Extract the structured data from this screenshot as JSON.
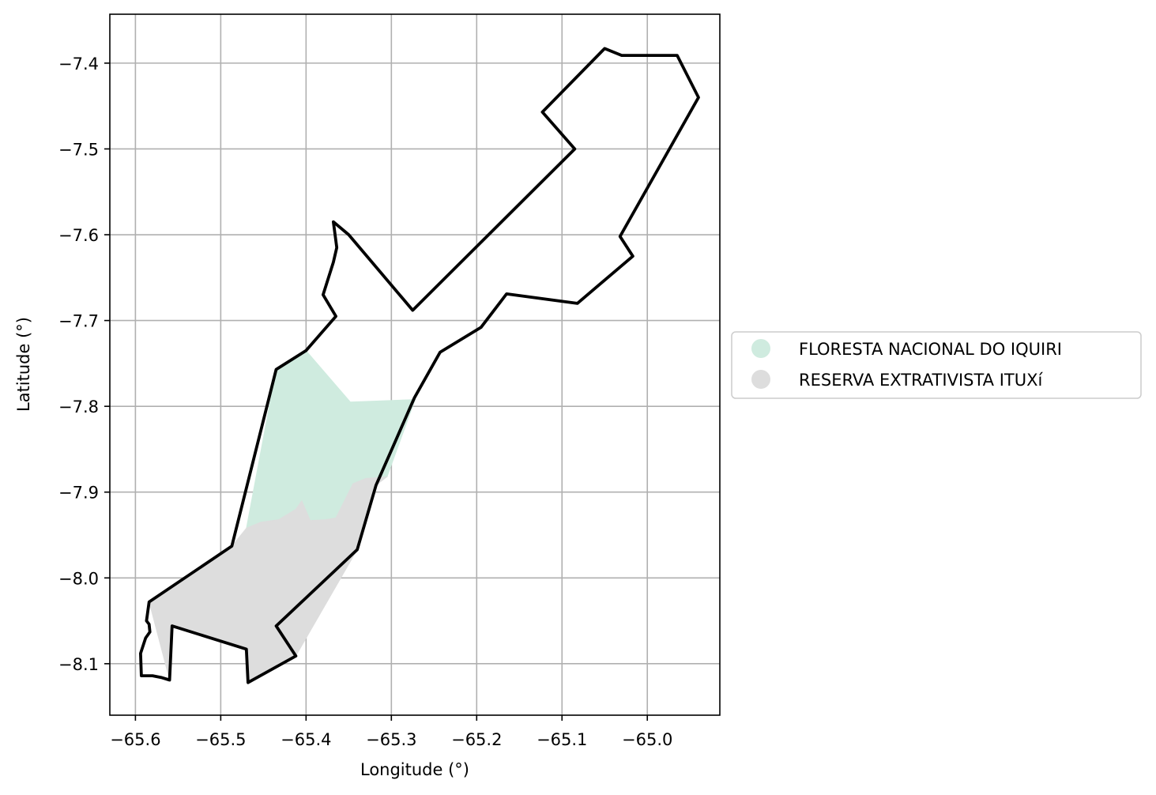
{
  "chart_data": {
    "type": "choropleth-map",
    "xlabel": "Longitude (°)",
    "ylabel": "Latitude (°)",
    "xlim": [
      -65.63,
      -64.915
    ],
    "ylim": [
      -8.16,
      -7.343
    ],
    "grid": true,
    "legend_placement": "center-right outside",
    "x_ticks": [
      {
        "value": -65.6,
        "label": "−65.6"
      },
      {
        "value": -65.5,
        "label": "−65.5"
      },
      {
        "value": -65.4,
        "label": "−65.4"
      },
      {
        "value": -65.3,
        "label": "−65.3"
      },
      {
        "value": -65.2,
        "label": "−65.2"
      },
      {
        "value": -65.1,
        "label": "−65.1"
      },
      {
        "value": -65.0,
        "label": "−65.0"
      }
    ],
    "y_ticks": [
      {
        "value": -7.4,
        "label": "−7.4"
      },
      {
        "value": -7.5,
        "label": "−7.5"
      },
      {
        "value": -7.6,
        "label": "−7.6"
      },
      {
        "value": -7.7,
        "label": "−7.7"
      },
      {
        "value": -7.8,
        "label": "−7.8"
      },
      {
        "value": -7.9,
        "label": "−7.9"
      },
      {
        "value": -8.0,
        "label": "−8.0"
      },
      {
        "value": -8.1,
        "label": "−8.1"
      }
    ],
    "legend": [
      {
        "label": "FLORESTA NACIONAL DO IQUIRI",
        "color": "#cfebdf"
      },
      {
        "label": "RESERVA EXTRATIVISTA ITUXí",
        "color": "#dddddd"
      }
    ],
    "areas": [
      {
        "name": "FLORESTA NACIONAL DO IQUIRI",
        "color": "#cfebdf",
        "polygon": [
          [
            -65.4,
            -7.735
          ],
          [
            -65.348,
            -7.795
          ],
          [
            -65.272,
            -7.792
          ],
          [
            -65.305,
            -7.882
          ],
          [
            -65.33,
            -7.884
          ],
          [
            -65.345,
            -7.89
          ],
          [
            -65.355,
            -7.91
          ],
          [
            -65.365,
            -7.93
          ],
          [
            -65.377,
            -7.932
          ],
          [
            -65.395,
            -7.933
          ],
          [
            -65.405,
            -7.91
          ],
          [
            -65.412,
            -7.92
          ],
          [
            -65.432,
            -7.932
          ],
          [
            -65.453,
            -7.935
          ],
          [
            -65.47,
            -7.942
          ],
          [
            -65.435,
            -7.757
          ]
        ]
      },
      {
        "name": "RESERVA EXTRATIVISTA ITUXí",
        "color": "#dddddd",
        "polygon": [
          [
            -65.47,
            -7.942
          ],
          [
            -65.453,
            -7.935
          ],
          [
            -65.432,
            -7.932
          ],
          [
            -65.412,
            -7.92
          ],
          [
            -65.405,
            -7.91
          ],
          [
            -65.395,
            -7.933
          ],
          [
            -65.377,
            -7.932
          ],
          [
            -65.365,
            -7.93
          ],
          [
            -65.355,
            -7.91
          ],
          [
            -65.345,
            -7.89
          ],
          [
            -65.33,
            -7.884
          ],
          [
            -65.305,
            -7.882
          ],
          [
            -65.318,
            -7.892
          ],
          [
            -65.34,
            -7.967
          ],
          [
            -65.412,
            -8.091
          ],
          [
            -65.468,
            -8.122
          ],
          [
            -65.47,
            -8.083
          ],
          [
            -65.557,
            -8.056
          ],
          [
            -65.56,
            -8.119
          ],
          [
            -65.584,
            -8.028
          ],
          [
            -65.487,
            -7.963
          ]
        ]
      }
    ],
    "outline": [
      [
        -65.05,
        -7.383
      ],
      [
        -65.03,
        -7.391
      ],
      [
        -64.965,
        -7.391
      ],
      [
        -64.94,
        -7.44
      ],
      [
        -65.032,
        -7.602
      ],
      [
        -65.017,
        -7.625
      ],
      [
        -65.082,
        -7.68
      ],
      [
        -65.165,
        -7.669
      ],
      [
        -65.195,
        -7.708
      ],
      [
        -65.243,
        -7.737
      ],
      [
        -65.273,
        -7.79
      ],
      [
        -65.295,
        -7.84
      ],
      [
        -65.318,
        -7.892
      ],
      [
        -65.34,
        -7.967
      ],
      [
        -65.435,
        -8.056
      ],
      [
        -65.412,
        -8.091
      ],
      [
        -65.468,
        -8.122
      ],
      [
        -65.47,
        -8.083
      ],
      [
        -65.557,
        -8.056
      ],
      [
        -65.56,
        -8.119
      ],
      [
        -65.57,
        -8.116
      ],
      [
        -65.58,
        -8.114
      ],
      [
        -65.593,
        -8.114
      ],
      [
        -65.594,
        -8.088
      ],
      [
        -65.588,
        -8.07
      ],
      [
        -65.583,
        -8.063
      ],
      [
        -65.584,
        -8.054
      ],
      [
        -65.587,
        -8.05
      ],
      [
        -65.584,
        -8.028
      ],
      [
        -65.487,
        -7.963
      ],
      [
        -65.435,
        -7.757
      ],
      [
        -65.4,
        -7.735
      ],
      [
        -65.365,
        -7.695
      ],
      [
        -65.38,
        -7.67
      ],
      [
        -65.368,
        -7.632
      ],
      [
        -65.364,
        -7.615
      ],
      [
        -65.368,
        -7.585
      ],
      [
        -65.35,
        -7.6
      ],
      [
        -65.275,
        -7.688
      ],
      [
        -65.085,
        -7.5
      ],
      [
        -65.123,
        -7.457
      ]
    ]
  }
}
